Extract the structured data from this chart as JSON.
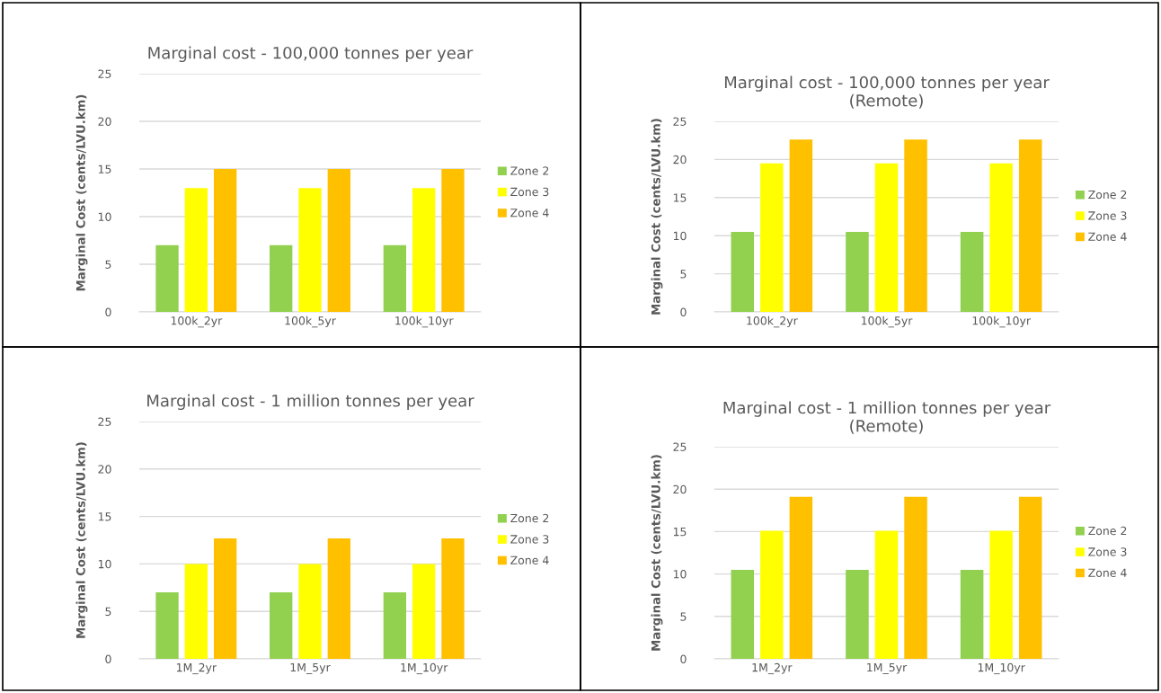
{
  "chart_data": [
    {
      "type": "bar",
      "title": "Marginal cost - 100,000 tonnes per year",
      "ylabel": "Marginal Cost (cents/LVU.km)",
      "categories": [
        "100k_2yr",
        "100k_5yr",
        "100k_10yr"
      ],
      "ylim": [
        0,
        25
      ],
      "yticks": [
        0,
        5,
        10,
        15,
        20,
        25
      ],
      "grid": "y",
      "legend": "right",
      "series": [
        {
          "name": "Zone 2",
          "color": "#92d050",
          "values": [
            7,
            7,
            7
          ]
        },
        {
          "name": "Zone 3",
          "color": "#ffff00",
          "values": [
            13,
            13,
            13
          ]
        },
        {
          "name": "Zone 4",
          "color": "#ffc000",
          "values": [
            15,
            15,
            15
          ]
        }
      ]
    },
    {
      "type": "bar",
      "title": "Marginal cost - 100,000 tonnes per year\n(Remote)",
      "ylabel": "Marginal Cost (cents/LVU.km)",
      "categories": [
        "100k_2yr",
        "100k_5yr",
        "100k_10yr"
      ],
      "ylim": [
        0,
        25
      ],
      "yticks": [
        0,
        5,
        10,
        15,
        20,
        25
      ],
      "grid": "y",
      "legend": "right",
      "series": [
        {
          "name": "Zone 2",
          "color": "#92d050",
          "values": [
            10.5,
            10.5,
            10.5
          ]
        },
        {
          "name": "Zone 3",
          "color": "#ffff00",
          "values": [
            19.5,
            19.5,
            19.5
          ]
        },
        {
          "name": "Zone 4",
          "color": "#ffc000",
          "values": [
            22.6,
            22.6,
            22.6
          ]
        }
      ]
    },
    {
      "type": "bar",
      "title": "Marginal cost - 1 million tonnes per year",
      "ylabel": "Marginal Cost (cents/LVU.km)",
      "categories": [
        "1M_2yr",
        "1M_5yr",
        "1M_10yr"
      ],
      "ylim": [
        0,
        25
      ],
      "yticks": [
        0,
        5,
        10,
        15,
        20,
        25
      ],
      "grid": "y",
      "legend": "right",
      "series": [
        {
          "name": "Zone 2",
          "color": "#92d050",
          "values": [
            7,
            7,
            7
          ]
        },
        {
          "name": "Zone 3",
          "color": "#ffff00",
          "values": [
            10,
            10,
            10
          ]
        },
        {
          "name": "Zone 4",
          "color": "#ffc000",
          "values": [
            12.7,
            12.7,
            12.7
          ]
        }
      ]
    },
    {
      "type": "bar",
      "title": "Marginal cost - 1 million tonnes per year\n(Remote)",
      "ylabel": "Marginal Cost (cents/LVU.km)",
      "categories": [
        "1M_2yr",
        "1M_5yr",
        "1M_10yr"
      ],
      "ylim": [
        0,
        25
      ],
      "yticks": [
        0,
        5,
        10,
        15,
        20,
        25
      ],
      "grid": "y",
      "legend": "right",
      "series": [
        {
          "name": "Zone 2",
          "color": "#92d050",
          "values": [
            10.5,
            10.5,
            10.5
          ]
        },
        {
          "name": "Zone 3",
          "color": "#ffff00",
          "values": [
            15.1,
            15.1,
            15.1
          ]
        },
        {
          "name": "Zone 4",
          "color": "#ffc000",
          "values": [
            19.1,
            19.1,
            19.1
          ]
        }
      ]
    }
  ]
}
